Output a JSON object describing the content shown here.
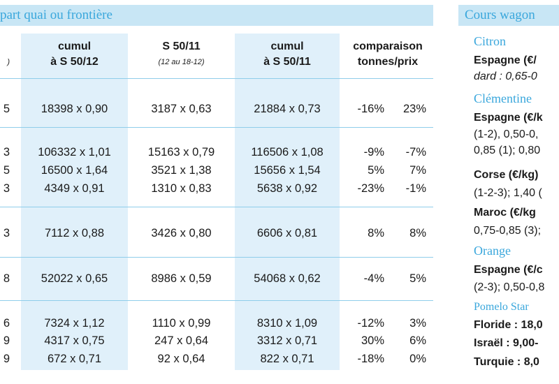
{
  "left_header": "part quai ou frontière",
  "right_header": "Cours wagon",
  "columns": [
    {
      "line1": "cumul",
      "line2": "à S 50/12",
      "sub": ""
    },
    {
      "line1": "S 50/11",
      "line2": "",
      "sub": "(12 au 18-12)"
    },
    {
      "line1": "cumul",
      "line2": "à S 50/11",
      "sub": ""
    },
    {
      "line1": "comparaison",
      "line2": "tonnes/prix",
      "sub": ""
    }
  ],
  "first_col_header_fragment": ")",
  "rows": [
    {
      "c0": "5",
      "c1": "18398 x 0,90",
      "c2": "3187 x 0,63",
      "c3": "21884 x 0,73",
      "c4": "-16%",
      "c5": "23%"
    },
    {
      "c0": "3",
      "c1": "106332 x 1,01",
      "c2": "15163 x 0,79",
      "c3": "116506 x 1,08",
      "c4": "-9%",
      "c5": "-7%"
    },
    {
      "c0": "5",
      "c1": "16500 x 1,64",
      "c2": "3521 x 1,38",
      "c3": "15656 x 1,54",
      "c4": "5%",
      "c5": "7%"
    },
    {
      "c0": "3",
      "c1": "4349 x 0,91",
      "c2": "1310 x 0,83",
      "c3": "5638 x 0,92",
      "c4": "-23%",
      "c5": "-1%"
    },
    {
      "c0": "3",
      "c1": "7112 x 0,88",
      "c2": "3426 x 0,80",
      "c3": "6606 x 0,81",
      "c4": "8%",
      "c5": "8%"
    },
    {
      "c0": "8",
      "c1": "52022 x 0,65",
      "c2": "8986 x 0,59",
      "c3": "54068 x 0,62",
      "c4": "-4%",
      "c5": "5%"
    },
    {
      "c0": "6",
      "c1": "7324 x 1,12",
      "c2": "1110 x 0,99",
      "c3": "8310 x 1,09",
      "c4": "-12%",
      "c5": "3%"
    },
    {
      "c0": "9",
      "c1": "4317 x 0,75",
      "c2": "247 x 0,64",
      "c3": "3312 x 0,71",
      "c4": "30%",
      "c5": "6%"
    },
    {
      "c0": "9",
      "c1": "672 x 0,71",
      "c2": "92 x 0,64",
      "c3": "822 x 0,71",
      "c4": "-18%",
      "c5": "0%"
    }
  ],
  "right_panel": [
    {
      "text": "Citron",
      "style": "fruit"
    },
    {
      "text": "Espagne (€/",
      "style": "country"
    },
    {
      "text": "dard : 0,65-0",
      "style": "italic"
    },
    {
      "text": "Clémentine",
      "style": "fruit"
    },
    {
      "text": "Espagne (€/k",
      "style": "country"
    },
    {
      "text": "(1-2), 0,50-0,",
      "style": "plain"
    },
    {
      "text": "0,85 (1); 0,80",
      "style": "plain"
    },
    {
      "text": "Corse (€/kg)",
      "style": "country"
    },
    {
      "text": "(1-2-3); 1,40 (",
      "style": "plain"
    },
    {
      "text": "Maroc (€/kg",
      "style": "country"
    },
    {
      "text": "0,75-0,85 (3);",
      "style": "plain"
    },
    {
      "text": "Orange",
      "style": "fruit"
    },
    {
      "text": "Espagne (€/c",
      "style": "country"
    },
    {
      "text": "(2-3); 0,50-0,8",
      "style": "plain"
    },
    {
      "text": "Pomelo Star",
      "style": "fruit-small"
    },
    {
      "text": "Floride : 18,0",
      "style": "boldlabel"
    },
    {
      "text": "Israël : 9,00-",
      "style": "boldlabel"
    },
    {
      "text": "Turquie : 8,0",
      "style": "boldlabel"
    }
  ]
}
